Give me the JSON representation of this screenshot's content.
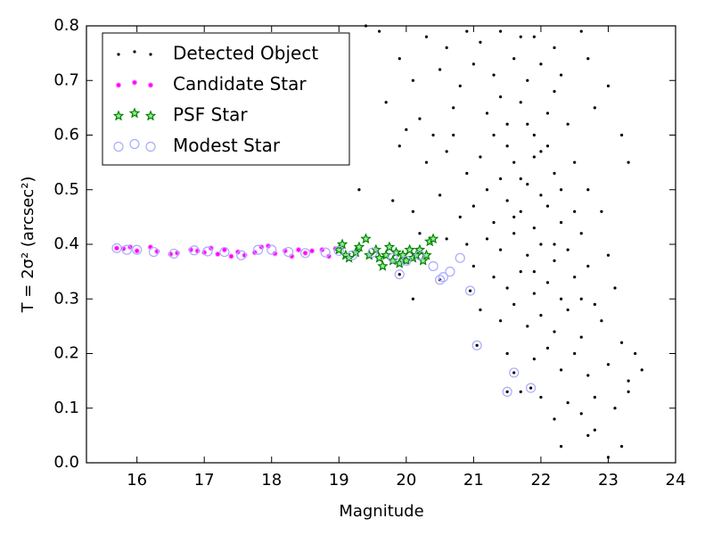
{
  "chart_data": {
    "type": "scatter",
    "xlabel": "Magnitude",
    "ylabel": "T = 2σ² (arcsec²)",
    "xlim": [
      15.25,
      24
    ],
    "ylim": [
      0,
      0.8
    ],
    "xticks": [
      16,
      17,
      18,
      19,
      20,
      21,
      22,
      23,
      24
    ],
    "yticks": [
      {
        "value": 0,
        "label": "0.0"
      },
      0.1,
      0.2,
      0.3,
      0.4,
      0.5,
      0.6,
      0.7,
      0.8
    ],
    "legend": "upper left",
    "series": [
      {
        "name": "Detected Object",
        "color": "#000000",
        "marker": "dot",
        "x": [
          20.3,
          20.6,
          20.9,
          21.1,
          21.4,
          21.9,
          22.2,
          22.6,
          19.6,
          19.9,
          20.1,
          20.5,
          20.8,
          21.0,
          21.3,
          21.6,
          21.8,
          22.0,
          22.3,
          22.7,
          23.0,
          19.7,
          20.2,
          20.4,
          20.7,
          21.2,
          21.5,
          21.7,
          21.9,
          22.1,
          22.4,
          22.8,
          23.2,
          19.9,
          20.3,
          20.6,
          20.9,
          21.1,
          21.4,
          21.6,
          21.8,
          22.0,
          22.2,
          22.5,
          22.7,
          23.3,
          19.3,
          19.8,
          20.1,
          20.5,
          20.8,
          21.0,
          21.3,
          21.5,
          21.7,
          21.9,
          22.1,
          22.3,
          22.6,
          22.9,
          20.2,
          20.6,
          20.9,
          21.2,
          21.4,
          21.6,
          21.8,
          22.0,
          22.2,
          22.4,
          22.7,
          23.0,
          21.0,
          21.3,
          21.5,
          21.7,
          21.9,
          22.1,
          22.3,
          22.5,
          22.8,
          23.1,
          20.1,
          21.1,
          21.4,
          21.6,
          21.8,
          22.0,
          22.2,
          22.4,
          22.6,
          22.9,
          23.2,
          23.4,
          21.5,
          21.9,
          22.1,
          22.3,
          22.5,
          22.7,
          23.0,
          23.3,
          23.5,
          21.7,
          22.0,
          22.2,
          22.4,
          22.6,
          22.8,
          23.1,
          23.3,
          22.3,
          22.7,
          23.0,
          23.2,
          22.8,
          21.3,
          21.5,
          21.7,
          22.1,
          21.2,
          21.6,
          21.9,
          22.0,
          21.8,
          22.3,
          22.5,
          21.4,
          21.7,
          22.2,
          20.7,
          19.4,
          20.0,
          22.6,
          22.2,
          21.9,
          19.9,
          20.5,
          20.95,
          21.05,
          21.5,
          21.6,
          21.85
        ],
        "y": [
          0.78,
          0.76,
          0.79,
          0.77,
          0.79,
          0.78,
          0.76,
          0.79,
          0.79,
          0.74,
          0.7,
          0.72,
          0.69,
          0.73,
          0.71,
          0.74,
          0.7,
          0.73,
          0.71,
          0.74,
          0.69,
          0.66,
          0.63,
          0.6,
          0.65,
          0.64,
          0.62,
          0.66,
          0.6,
          0.64,
          0.62,
          0.65,
          0.6,
          0.58,
          0.55,
          0.57,
          0.53,
          0.56,
          0.52,
          0.55,
          0.51,
          0.57,
          0.53,
          0.55,
          0.5,
          0.55,
          0.5,
          0.48,
          0.46,
          0.49,
          0.45,
          0.47,
          0.44,
          0.48,
          0.46,
          0.43,
          0.47,
          0.44,
          0.42,
          0.46,
          0.42,
          0.41,
          0.4,
          0.41,
          0.39,
          0.42,
          0.38,
          0.4,
          0.37,
          0.39,
          0.36,
          0.38,
          0.36,
          0.34,
          0.32,
          0.35,
          0.31,
          0.33,
          0.3,
          0.34,
          0.29,
          0.32,
          0.3,
          0.28,
          0.26,
          0.29,
          0.25,
          0.27,
          0.24,
          0.28,
          0.23,
          0.26,
          0.22,
          0.2,
          0.2,
          0.19,
          0.21,
          0.17,
          0.2,
          0.16,
          0.18,
          0.15,
          0.17,
          0.13,
          0.12,
          0.08,
          0.11,
          0.09,
          0.12,
          0.1,
          0.13,
          0.03,
          0.05,
          0.01,
          0.03,
          0.06,
          0.6,
          0.58,
          0.52,
          0.58,
          0.5,
          0.45,
          0.56,
          0.49,
          0.62,
          0.5,
          0.46,
          0.67,
          0.78,
          0.68,
          0.6,
          0.8,
          0.61,
          0.3,
          0.4,
          0.35,
          0.345,
          0.335,
          0.315,
          0.215,
          0.13,
          0.165,
          0.137
        ]
      },
      {
        "name": "Candidate Star",
        "color": "#ff00ff",
        "marker": "circle",
        "x": [
          15.7,
          15.8,
          15.9,
          16.0,
          16.2,
          16.3,
          16.5,
          16.6,
          16.8,
          16.9,
          17.0,
          17.1,
          17.2,
          17.3,
          17.4,
          17.5,
          17.6,
          17.75,
          17.85,
          17.95,
          18.05,
          18.2,
          18.3,
          18.4,
          18.5,
          18.6,
          18.75,
          18.85,
          18.95
        ],
        "y": [
          0.393,
          0.392,
          0.395,
          0.388,
          0.395,
          0.387,
          0.382,
          0.384,
          0.39,
          0.388,
          0.385,
          0.393,
          0.382,
          0.39,
          0.378,
          0.386,
          0.38,
          0.385,
          0.395,
          0.397,
          0.383,
          0.388,
          0.378,
          0.39,
          0.384,
          0.388,
          0.39,
          0.378,
          0.392
        ]
      },
      {
        "name": "PSF Star",
        "color": "#008000",
        "marker": "star",
        "x": [
          19.0,
          19.05,
          19.1,
          19.15,
          19.25,
          19.3,
          19.4,
          19.45,
          19.55,
          19.6,
          19.7,
          19.75,
          19.8,
          19.85,
          19.9,
          19.95,
          20.0,
          20.05,
          20.1,
          20.15,
          20.2,
          20.3,
          20.35,
          20.4,
          20.25,
          19.65
        ],
        "y": [
          0.39,
          0.4,
          0.38,
          0.375,
          0.385,
          0.395,
          0.41,
          0.38,
          0.39,
          0.375,
          0.38,
          0.395,
          0.37,
          0.385,
          0.365,
          0.38,
          0.37,
          0.39,
          0.375,
          0.38,
          0.39,
          0.38,
          0.405,
          0.41,
          0.37,
          0.36
        ]
      },
      {
        "name": "Modest Star",
        "color": "#aaaaff",
        "marker": "ring",
        "x": [
          15.7,
          15.85,
          16.0,
          16.25,
          16.55,
          16.85,
          17.05,
          17.3,
          17.55,
          17.8,
          18.0,
          18.25,
          18.5,
          18.8,
          19.0,
          19.2,
          19.5,
          19.8,
          20.0,
          20.2,
          20.4,
          20.55,
          20.65,
          20.8,
          19.9,
          20.5,
          20.95,
          21.05,
          21.5,
          21.6,
          21.85
        ],
        "y": [
          0.393,
          0.39,
          0.39,
          0.386,
          0.383,
          0.389,
          0.387,
          0.386,
          0.38,
          0.39,
          0.39,
          0.386,
          0.384,
          0.385,
          0.388,
          0.38,
          0.385,
          0.375,
          0.37,
          0.38,
          0.36,
          0.34,
          0.35,
          0.375,
          0.345,
          0.335,
          0.315,
          0.215,
          0.13,
          0.165,
          0.137
        ]
      }
    ]
  }
}
